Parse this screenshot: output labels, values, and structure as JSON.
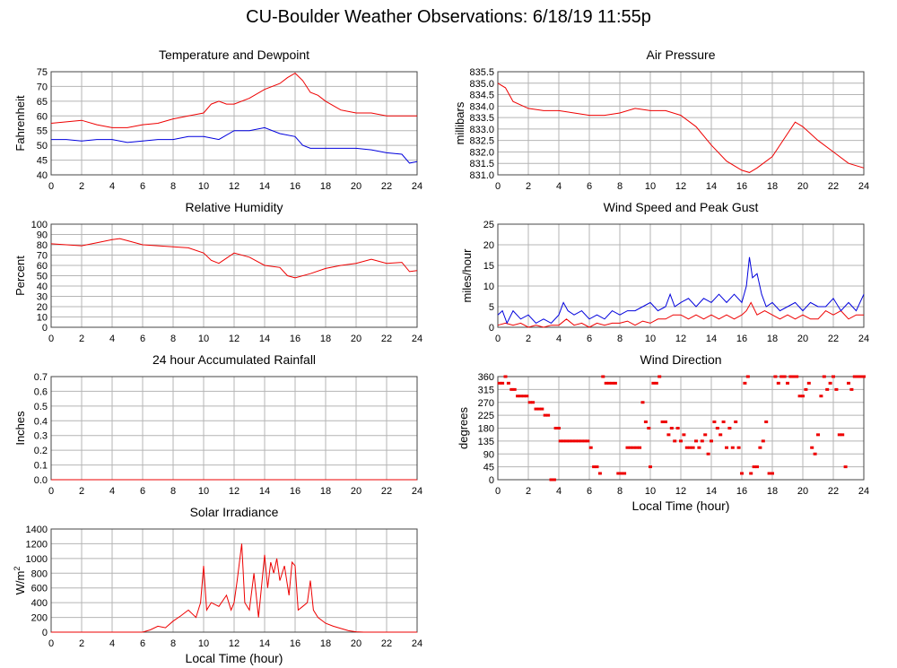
{
  "page": {
    "title": "CU-Boulder Weather Observations: 6/18/19 11:55p"
  },
  "colors": {
    "red": "#ee0000",
    "blue": "#0000dd",
    "grid": "#b4b4b4",
    "frame": "#444444"
  },
  "chart_data": [
    {
      "id": "temp",
      "type": "line",
      "title": "Temperature and Dewpoint",
      "xlabel": "",
      "ylabel": "Fahrenheit",
      "xlim": [
        0,
        24
      ],
      "ylim": [
        40,
        75
      ],
      "xticks": [
        0,
        2,
        4,
        6,
        8,
        10,
        12,
        14,
        16,
        18,
        20,
        22,
        24
      ],
      "yticks": [
        40,
        45,
        50,
        55,
        60,
        65,
        70,
        75
      ],
      "grid": true,
      "series": [
        {
          "color": "red",
          "x": [
            0,
            1,
            2,
            3,
            4,
            5,
            6,
            7,
            8,
            9,
            10,
            10.5,
            11,
            11.5,
            12,
            13,
            14,
            15,
            15.5,
            16,
            16.5,
            17,
            17.5,
            18,
            19,
            20,
            21,
            22,
            23,
            24
          ],
          "values": [
            57.5,
            58,
            58.5,
            57,
            56,
            56,
            57,
            57.5,
            59,
            60,
            61,
            64,
            65,
            64,
            64,
            66,
            69,
            71,
            73,
            74.5,
            72,
            68,
            67,
            65,
            62,
            61,
            61,
            60,
            60,
            60
          ]
        },
        {
          "color": "blue",
          "x": [
            0,
            1,
            2,
            3,
            4,
            5,
            6,
            7,
            8,
            9,
            10,
            11,
            12,
            13,
            14,
            15,
            16,
            16.5,
            17,
            18,
            19,
            20,
            21,
            22,
            23,
            23.5,
            24
          ],
          "values": [
            52,
            52,
            51.5,
            52,
            52,
            51,
            51.5,
            52,
            52,
            53,
            53,
            52,
            55,
            55,
            56,
            54,
            53,
            50,
            49,
            49,
            49,
            49,
            48.5,
            47.5,
            47,
            44,
            44.5
          ]
        }
      ]
    },
    {
      "id": "pressure",
      "type": "line",
      "title": "Air Pressure",
      "xlabel": "",
      "ylabel": "millibars",
      "xlim": [
        0,
        24
      ],
      "ylim": [
        831.0,
        835.5
      ],
      "xticks": [
        0,
        2,
        4,
        6,
        8,
        10,
        12,
        14,
        16,
        18,
        20,
        22,
        24
      ],
      "yticks": [
        "831.0",
        "831.5",
        "832.0",
        "832.5",
        "833.0",
        "833.5",
        "834.0",
        "834.5",
        "835.0",
        "835.5"
      ],
      "grid": true,
      "series": [
        {
          "color": "red",
          "x": [
            0,
            0.5,
            1,
            2,
            3,
            4,
            5,
            6,
            7,
            8,
            9,
            10,
            11,
            12,
            13,
            14,
            15,
            16,
            16.5,
            17,
            18,
            19,
            19.5,
            20,
            21,
            22,
            23,
            24
          ],
          "values": [
            835.0,
            834.8,
            834.2,
            833.9,
            833.8,
            833.8,
            833.7,
            833.6,
            833.6,
            833.7,
            833.9,
            833.8,
            833.8,
            833.6,
            833.1,
            832.3,
            831.6,
            831.2,
            831.1,
            831.3,
            831.8,
            832.8,
            833.3,
            833.1,
            832.5,
            832.0,
            831.5,
            831.3
          ]
        }
      ]
    },
    {
      "id": "rh",
      "type": "line",
      "title": "Relative Humidity",
      "xlabel": "",
      "ylabel": "Percent",
      "xlim": [
        0,
        24
      ],
      "ylim": [
        0,
        100
      ],
      "xticks": [
        0,
        2,
        4,
        6,
        8,
        10,
        12,
        14,
        16,
        18,
        20,
        22,
        24
      ],
      "yticks": [
        0,
        10,
        20,
        30,
        40,
        50,
        60,
        70,
        80,
        90,
        100
      ],
      "grid": true,
      "series": [
        {
          "color": "red",
          "x": [
            0,
            1,
            2,
            3,
            4,
            4.5,
            5,
            6,
            7,
            8,
            9,
            10,
            10.5,
            11,
            12,
            13,
            14,
            15,
            15.5,
            16,
            17,
            18,
            19,
            20,
            21,
            22,
            23,
            23.5,
            24
          ],
          "values": [
            81,
            80,
            79,
            82,
            85,
            86,
            84,
            80,
            79,
            78,
            77,
            72,
            65,
            62,
            72,
            68,
            60,
            58,
            50,
            48,
            52,
            57,
            60,
            62,
            66,
            62,
            63,
            54,
            55
          ]
        }
      ]
    },
    {
      "id": "wind",
      "type": "line",
      "title": "Wind Speed and Peak Gust",
      "xlabel": "",
      "ylabel": "miles/hour",
      "xlim": [
        0,
        24
      ],
      "ylim": [
        0,
        25
      ],
      "xticks": [
        0,
        2,
        4,
        6,
        8,
        10,
        12,
        14,
        16,
        18,
        20,
        22,
        24
      ],
      "yticks": [
        0,
        5,
        10,
        15,
        20,
        25
      ],
      "grid": true,
      "series": [
        {
          "color": "red",
          "x": [
            0,
            0.5,
            1,
            1.5,
            2,
            2.5,
            3,
            3.5,
            4,
            4.5,
            5,
            5.5,
            6,
            6.5,
            7,
            7.5,
            8,
            8.5,
            9,
            9.5,
            10,
            10.5,
            11,
            11.5,
            12,
            12.5,
            13,
            13.5,
            14,
            14.5,
            15,
            15.5,
            16,
            16.3,
            16.6,
            17,
            17.5,
            18,
            18.5,
            19,
            19.5,
            20,
            20.5,
            21,
            21.5,
            22,
            22.5,
            23,
            23.5,
            24
          ],
          "values": [
            0.5,
            1,
            0.5,
            1,
            0,
            0.5,
            0,
            0.5,
            0.5,
            2,
            0.5,
            1,
            0,
            1,
            0.5,
            1,
            1,
            1.5,
            0.5,
            1.5,
            1,
            2,
            2,
            3,
            3,
            2,
            3,
            2,
            3,
            2,
            3,
            2,
            3,
            4,
            6,
            3,
            4,
            3,
            2,
            3,
            2,
            3,
            2,
            2,
            4,
            3,
            4,
            2,
            3,
            3
          ]
        },
        {
          "color": "blue",
          "x": [
            0,
            0.3,
            0.6,
            1,
            1.5,
            2,
            2.5,
            3,
            3.5,
            4,
            4.3,
            4.6,
            5,
            5.5,
            6,
            6.5,
            7,
            7.5,
            8,
            8.5,
            9,
            9.5,
            10,
            10.5,
            11,
            11.3,
            11.6,
            12,
            12.5,
            13,
            13.5,
            14,
            14.5,
            15,
            15.5,
            16,
            16.3,
            16.5,
            16.7,
            17,
            17.3,
            17.6,
            18,
            18.5,
            19,
            19.5,
            20,
            20.5,
            21,
            21.5,
            22,
            22.5,
            23,
            23.5,
            24
          ],
          "values": [
            3,
            4,
            1,
            4,
            2,
            3,
            1,
            2,
            1,
            3,
            6,
            4,
            3,
            4,
            2,
            3,
            2,
            4,
            3,
            4,
            4,
            5,
            6,
            4,
            5,
            8,
            5,
            6,
            7,
            5,
            7,
            6,
            8,
            6,
            8,
            6,
            10,
            17,
            12,
            13,
            8,
            5,
            6,
            4,
            5,
            6,
            4,
            6,
            5,
            5,
            7,
            4,
            6,
            4,
            8
          ]
        }
      ]
    },
    {
      "id": "rain",
      "type": "line",
      "title": "24 hour Accumulated Rainfall",
      "xlabel": "",
      "ylabel": "Inches",
      "xlim": [
        0,
        24
      ],
      "ylim": [
        0,
        0.7
      ],
      "xticks": [
        0,
        2,
        4,
        6,
        8,
        10,
        12,
        14,
        16,
        18,
        20,
        22,
        24
      ],
      "yticks": [
        "0.0",
        "0.1",
        "0.2",
        "0.3",
        "0.4",
        "0.5",
        "0.6",
        "0.7"
      ],
      "grid": true,
      "series": [
        {
          "color": "red",
          "x": [
            0,
            24
          ],
          "values": [
            0,
            0
          ]
        }
      ]
    },
    {
      "id": "direction",
      "type": "scatter",
      "title": "Wind Direction",
      "xlabel": "Local Time (hour)",
      "ylabel": "degrees",
      "xlim": [
        0,
        24
      ],
      "ylim": [
        0,
        360
      ],
      "xticks": [
        0,
        2,
        4,
        6,
        8,
        10,
        12,
        14,
        16,
        18,
        20,
        22,
        24
      ],
      "yticks": [
        0,
        45,
        90,
        135,
        180,
        225,
        270,
        315,
        360
      ],
      "grid": true,
      "series": [
        {
          "color": "red",
          "x": [
            0.1,
            0.3,
            0.5,
            0.7,
            0.9,
            1.1,
            1.3,
            1.5,
            1.7,
            1.9,
            2.1,
            2.3,
            2.5,
            2.7,
            2.9,
            3.1,
            3.3,
            3.5,
            3.7,
            3.8,
            4.0,
            4.1,
            4.3,
            4.5,
            4.7,
            4.9,
            5.1,
            5.3,
            5.5,
            5.7,
            5.9,
            6.1,
            6.3,
            6.5,
            6.7,
            6.9,
            7.1,
            7.3,
            7.5,
            7.7,
            7.9,
            8.1,
            8.3,
            8.5,
            8.7,
            8.9,
            9.1,
            9.3,
            9.5,
            9.7,
            9.9,
            10.0,
            10.2,
            10.4,
            10.6,
            10.8,
            11.0,
            11.2,
            11.4,
            11.6,
            11.8,
            12.0,
            12.2,
            12.4,
            12.6,
            12.8,
            13.0,
            13.2,
            13.4,
            13.6,
            13.8,
            14.0,
            14.2,
            14.4,
            14.6,
            14.8,
            15.0,
            15.2,
            15.4,
            15.6,
            15.8,
            16.0,
            16.2,
            16.4,
            16.6,
            16.8,
            17.0,
            17.2,
            17.4,
            17.6,
            17.8,
            18.0,
            18.2,
            18.4,
            18.6,
            18.8,
            19.0,
            19.2,
            19.4,
            19.6,
            19.8,
            20.0,
            20.2,
            20.4,
            20.6,
            20.8,
            21.0,
            21.2,
            21.4,
            21.6,
            21.8,
            22.0,
            22.2,
            22.4,
            22.6,
            22.8,
            23.0,
            23.2,
            23.4,
            23.6,
            23.8,
            24.0
          ],
          "values": [
            337,
            337,
            360,
            337,
            315,
            315,
            292,
            292,
            292,
            292,
            270,
            270,
            247,
            247,
            247,
            225,
            225,
            0,
            0,
            180,
            180,
            135,
            135,
            135,
            135,
            135,
            135,
            135,
            135,
            135,
            135,
            112,
            45,
            45,
            22,
            360,
            337,
            337,
            337,
            337,
            22,
            22,
            22,
            112,
            112,
            112,
            112,
            112,
            270,
            202,
            180,
            45,
            337,
            337,
            360,
            202,
            202,
            157,
            180,
            135,
            180,
            135,
            157,
            112,
            112,
            112,
            135,
            112,
            135,
            157,
            90,
            135,
            202,
            180,
            157,
            202,
            112,
            180,
            112,
            202,
            112,
            22,
            337,
            360,
            22,
            45,
            45,
            112,
            135,
            202,
            22,
            22,
            360,
            337,
            360,
            360,
            337,
            360,
            360,
            360,
            292,
            292,
            315,
            337,
            112,
            90,
            157,
            292,
            360,
            315,
            337,
            360,
            315,
            157,
            157,
            45,
            337,
            315,
            360,
            360,
            360,
            360
          ]
        }
      ]
    },
    {
      "id": "solar",
      "type": "line",
      "title": "Solar Irradiance",
      "xlabel": "Local Time (hour)",
      "ylabel": "W/m2",
      "xlim": [
        0,
        24
      ],
      "ylim": [
        0,
        1400
      ],
      "xticks": [
        0,
        2,
        4,
        6,
        8,
        10,
        12,
        14,
        16,
        18,
        20,
        22,
        24
      ],
      "yticks": [
        0,
        200,
        400,
        600,
        800,
        1000,
        1200,
        1400
      ],
      "grid": true,
      "series": [
        {
          "color": "red",
          "x": [
            0,
            6,
            6.5,
            7,
            7.5,
            8,
            8.5,
            9,
            9.5,
            9.8,
            10,
            10.2,
            10.5,
            11,
            11.5,
            11.8,
            12,
            12.2,
            12.5,
            12.7,
            13,
            13.3,
            13.6,
            14,
            14.2,
            14.4,
            14.6,
            14.8,
            15,
            15.3,
            15.6,
            15.8,
            16,
            16.2,
            16.5,
            16.8,
            17,
            17.2,
            17.5,
            18,
            18.5,
            19,
            19.5,
            20,
            20.5,
            24
          ],
          "values": [
            0,
            0,
            30,
            80,
            60,
            150,
            220,
            300,
            200,
            400,
            900,
            300,
            400,
            350,
            500,
            300,
            400,
            700,
            1200,
            400,
            300,
            800,
            200,
            1050,
            600,
            950,
            800,
            1000,
            700,
            900,
            500,
            950,
            900,
            300,
            350,
            400,
            700,
            300,
            200,
            120,
            80,
            50,
            20,
            5,
            0,
            0
          ]
        }
      ]
    }
  ]
}
